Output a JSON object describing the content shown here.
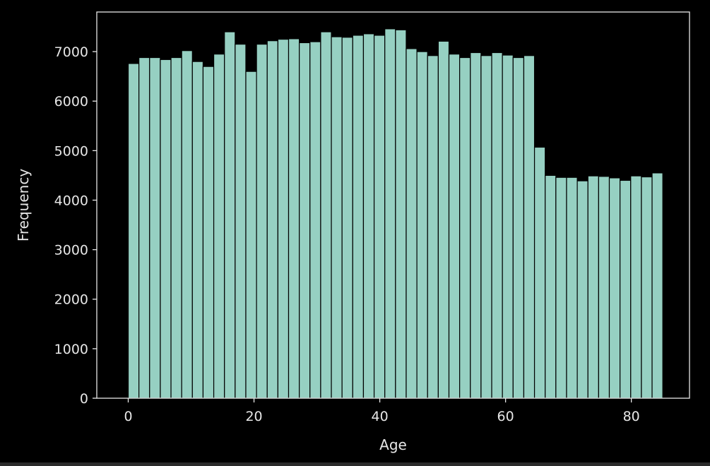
{
  "colors": {
    "background": "#000000",
    "frame": "#2b2b2b",
    "bar_fill": "#96d0c2",
    "bar_edge": "#000000",
    "axis": "#e6e6e6",
    "text": "#e6e6e6"
  },
  "chart_data": {
    "type": "bar",
    "title": "",
    "xlabel": "Age",
    "ylabel": "Frequency",
    "xlim": [
      -5,
      89.25
    ],
    "ylim": [
      0,
      7800
    ],
    "xticks": [
      0,
      20,
      40,
      60,
      80
    ],
    "yticks": [
      0,
      1000,
      2000,
      3000,
      4000,
      5000,
      6000,
      7000
    ],
    "grid": false,
    "legend": "none",
    "bin_width": 1.7,
    "bin_starts": [
      0.0,
      1.7,
      3.4,
      5.1,
      6.8,
      8.5,
      10.2,
      11.9,
      13.6,
      15.3,
      17.0,
      18.7,
      20.4,
      22.1,
      23.8,
      25.5,
      27.2,
      28.9,
      30.6,
      32.3,
      34.0,
      35.7,
      37.4,
      39.1,
      40.8,
      42.5,
      44.2,
      45.9,
      47.6,
      49.3,
      51.0,
      52.7,
      54.4,
      56.1,
      57.8,
      59.5,
      61.2,
      62.9,
      64.6,
      66.3,
      68.0,
      69.7,
      71.4,
      73.1,
      74.8,
      76.5,
      78.2,
      79.9,
      81.6,
      83.3
    ],
    "values": [
      6760,
      6880,
      6880,
      6840,
      6880,
      7020,
      6800,
      6700,
      6950,
      7400,
      7150,
      6600,
      7150,
      7220,
      7250,
      7260,
      7180,
      7200,
      7400,
      7300,
      7290,
      7330,
      7360,
      7330,
      7460,
      7440,
      7060,
      7000,
      6920,
      7210,
      6950,
      6880,
      6980,
      6920,
      6980,
      6930,
      6880,
      6920,
      5070,
      4500,
      4460,
      4460,
      4390,
      4490,
      4480,
      4450,
      4400,
      4490,
      4470,
      4550
    ]
  }
}
